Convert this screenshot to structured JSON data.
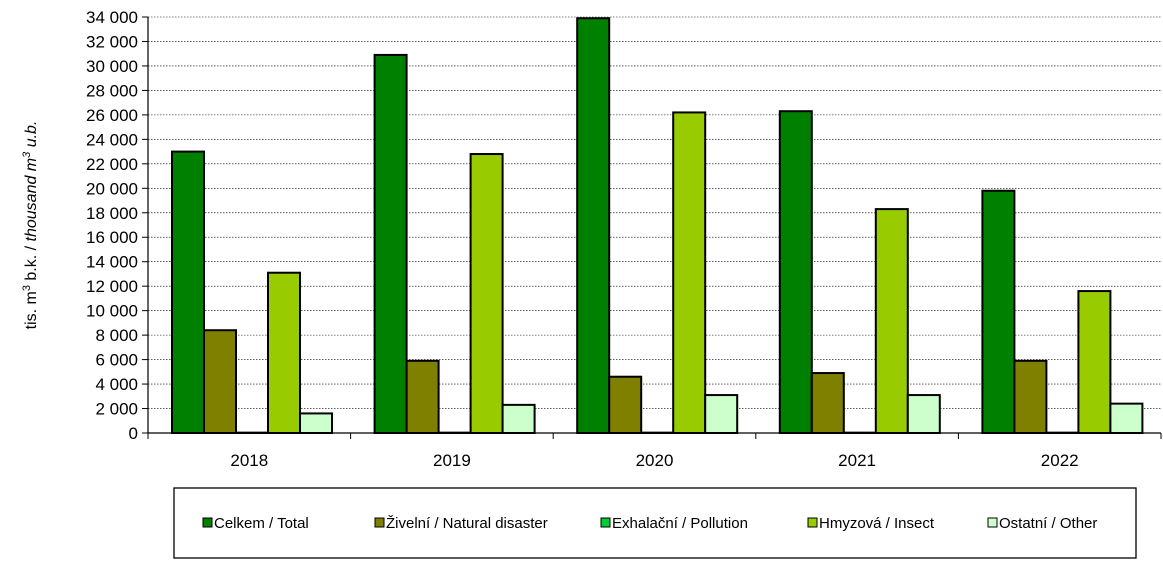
{
  "chart_data": {
    "type": "bar",
    "categories": [
      "2018",
      "2019",
      "2020",
      "2021",
      "2022"
    ],
    "series": [
      {
        "name": "Celkem / Total",
        "color": "#008000",
        "values": [
          23000,
          30900,
          33900,
          26300,
          19800
        ]
      },
      {
        "name": "Živelní / Natural disaster",
        "color": "#808000",
        "values": [
          8400,
          5900,
          4600,
          4900,
          5900
        ]
      },
      {
        "name": "Exhalační / Pollution",
        "color": "#00CC33",
        "values": [
          30,
          30,
          30,
          30,
          30
        ]
      },
      {
        "name": "Hmyzová / Insect",
        "color": "#99CC00",
        "values": [
          13100,
          22800,
          26200,
          18300,
          11600
        ]
      },
      {
        "name": "Ostatní / Other",
        "color": "#CCFFCC",
        "values": [
          1600,
          2300,
          3100,
          3100,
          2400
        ]
      }
    ],
    "ylim": [
      0,
      34000
    ],
    "ytick_step": 2000,
    "ytick_labels": [
      "0",
      "2 000",
      "4 000",
      "6 000",
      "8 000",
      "10 000",
      "12 000",
      "14 000",
      "16 000",
      "18 000",
      "20 000",
      "22 000",
      "24 000",
      "26 000",
      "28 000",
      "30 000",
      "32 000",
      "34 000"
    ],
    "ylabel_prefix": "tis. m",
    "ylabel_sup1": "3",
    "ylabel_mid": " b.k. / ",
    "ylabel_italic": "thousand m",
    "ylabel_sup2": "3",
    "ylabel_italic2": " u.b.",
    "grid": true,
    "legend_position": "bottom"
  }
}
